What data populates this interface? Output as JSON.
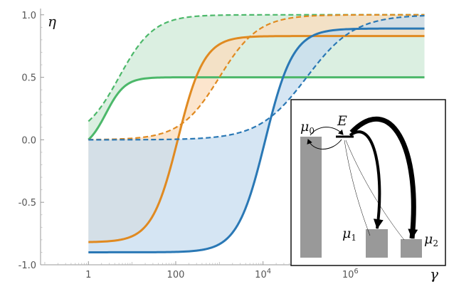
{
  "chart_data": {
    "type": "line",
    "title": "",
    "xlabel": "γ",
    "ylabel": "η",
    "xscale": "log10",
    "xlim": [
      0.08,
      100000000.0
    ],
    "ylim": [
      -1.0,
      1.05
    ],
    "x_ticks": [
      {
        "value": 1,
        "base": "1",
        "exp": ""
      },
      {
        "value": 100,
        "base": "100",
        "exp": ""
      },
      {
        "value": 10000,
        "base": "10",
        "exp": "4"
      },
      {
        "value": 1000000,
        "base": "10",
        "exp": "6"
      }
    ],
    "y_ticks": [
      {
        "value": 1.0,
        "label": "1.0"
      },
      {
        "value": 0.5,
        "label": "0.5"
      },
      {
        "value": 0.0,
        "label": "0.0"
      },
      {
        "value": -0.5,
        "label": "-0.5"
      },
      {
        "value": -1.0,
        "label": "-1.0"
      }
    ],
    "grid": false,
    "x_start": 1,
    "x_end": 50000000,
    "series": [
      {
        "color": "#4cb86a",
        "fill": "#cfead7",
        "solid": {
          "low": -0.08,
          "high": 0.5,
          "center_log10": 0.4,
          "width": 0.22
        },
        "dashed": {
          "low": 0.0,
          "high": 1.0,
          "center_log10": 0.7,
          "width": 0.4
        }
      },
      {
        "color": "#e08a21",
        "fill": "#fbdcbc",
        "solid": {
          "low": -0.82,
          "high": 0.83,
          "center_log10": 2.05,
          "width": 0.3
        },
        "dashed": {
          "low": 0.0,
          "high": 1.0,
          "center_log10": 3.0,
          "width": 0.45
        }
      },
      {
        "color": "#2a78b5",
        "fill": "#c7dcef",
        "solid": {
          "low": -0.9,
          "high": 0.89,
          "center_log10": 4.05,
          "width": 0.32
        },
        "dashed": {
          "low": 0.0,
          "high": 1.0,
          "center_log10": 5.0,
          "width": 0.55
        }
      }
    ],
    "inset": {
      "level_label": "E",
      "states": [
        {
          "label": "μ",
          "sub": "0"
        },
        {
          "label": "μ",
          "sub": "1"
        },
        {
          "label": "μ",
          "sub": "2"
        }
      ]
    }
  }
}
